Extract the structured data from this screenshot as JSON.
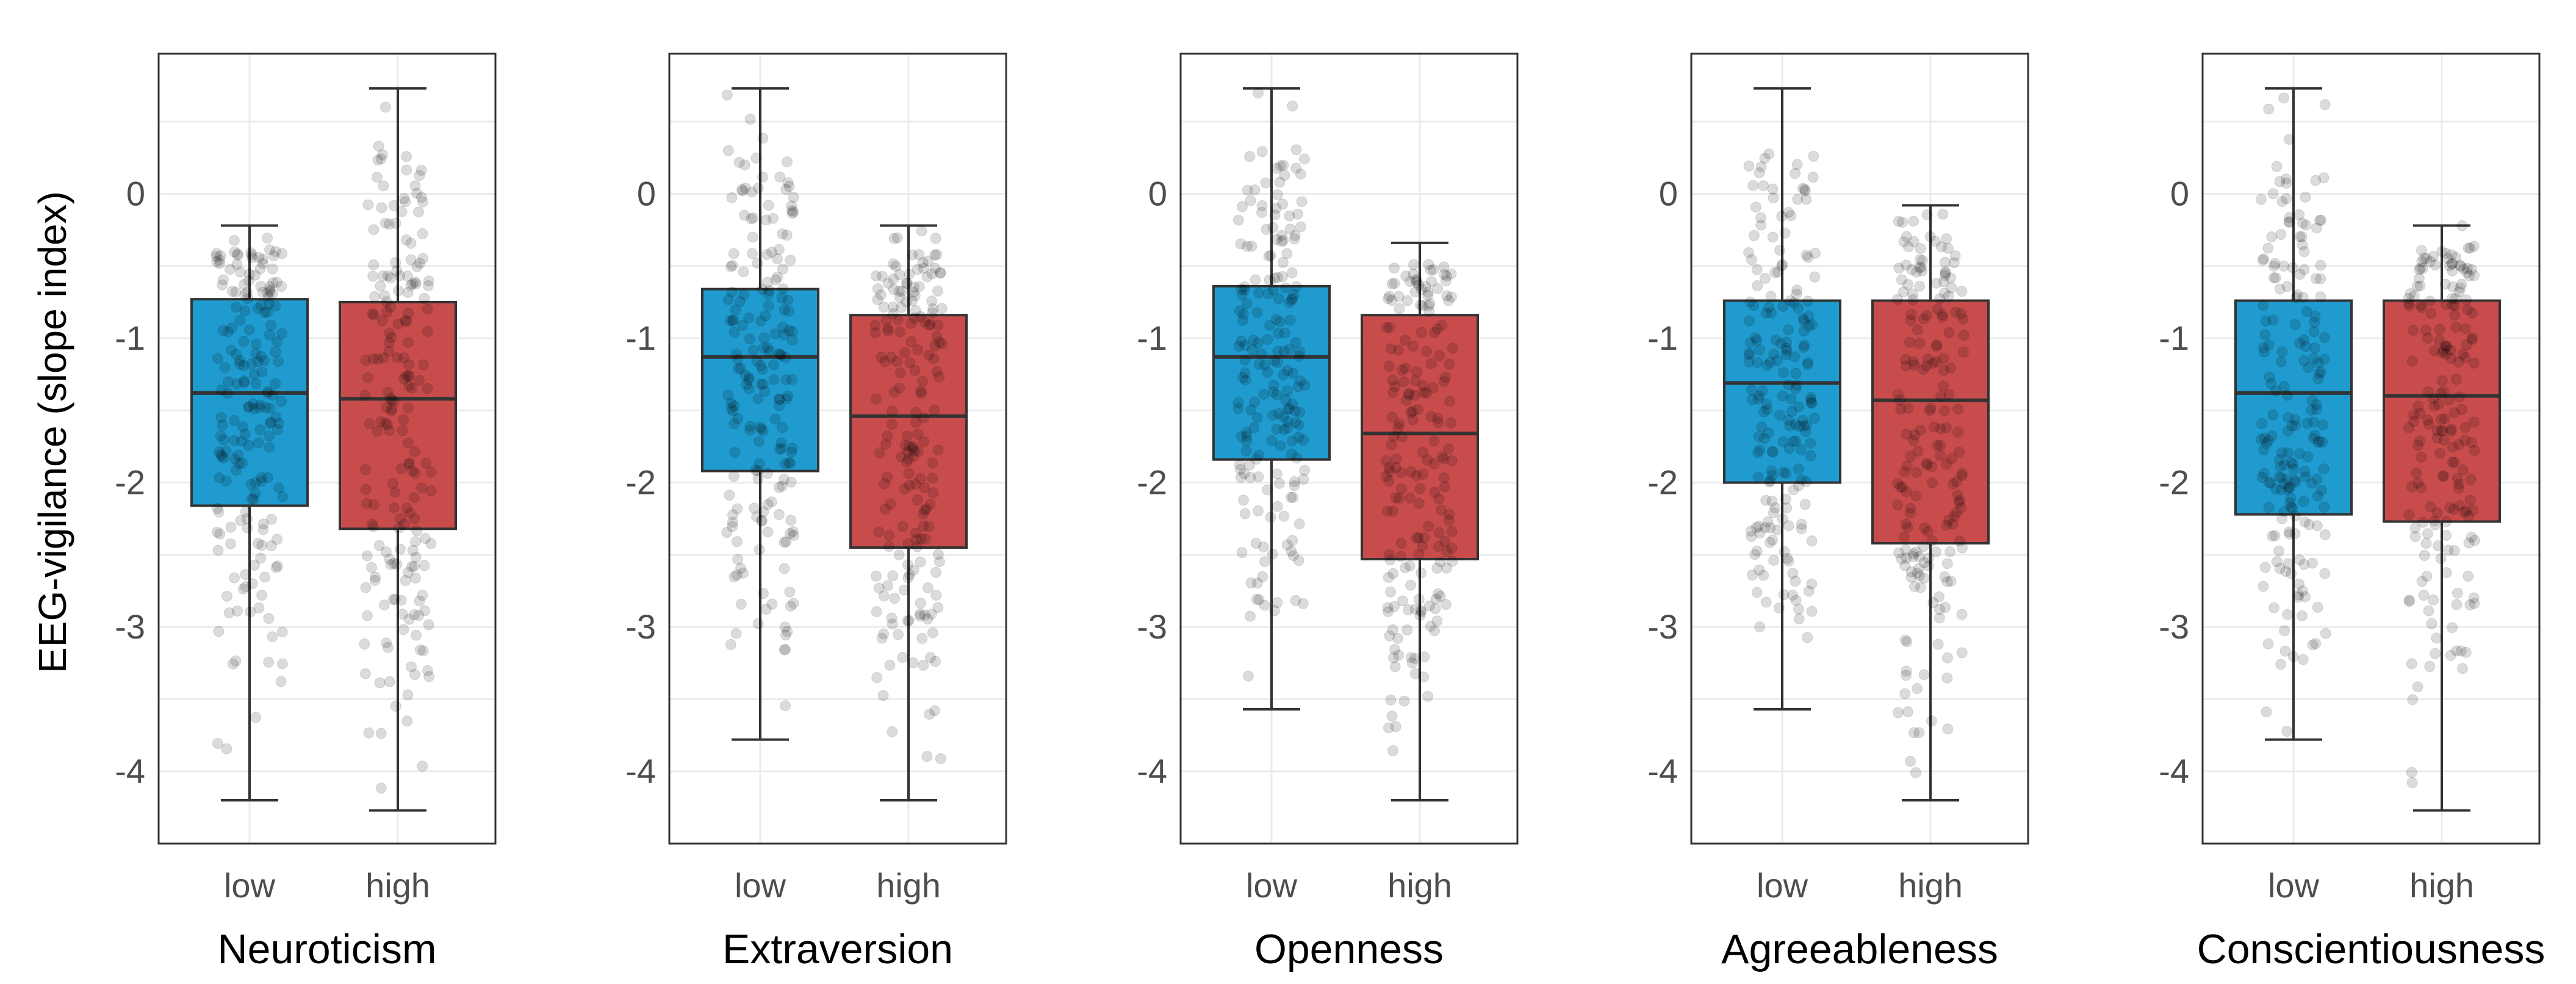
{
  "chart_data": [
    {
      "type": "box",
      "title": "",
      "xlabel": "Neuroticism",
      "ylabel": "EEG-vigilance (slope index)",
      "ylim": [
        -4.5,
        0.97
      ],
      "yticks": [
        "0",
        "-1",
        "-2",
        "-3",
        "-4"
      ],
      "categories": [
        "low",
        "high"
      ],
      "colors": [
        "#1f9bcf",
        "#c84c4c"
      ],
      "boxes": [
        {
          "name": "low",
          "min": -4.2,
          "q1": -2.16,
          "median": -1.38,
          "q3": -0.73,
          "max": -0.22
        },
        {
          "name": "high",
          "min": -4.27,
          "q1": -2.32,
          "median": -1.42,
          "q3": -0.75,
          "max": 0.73
        }
      ]
    },
    {
      "type": "box",
      "title": "",
      "xlabel": "Extraversion",
      "ylabel": "",
      "ylim": [
        -4.5,
        0.97
      ],
      "yticks": [
        "0",
        "-1",
        "-2",
        "-3",
        "-4"
      ],
      "categories": [
        "low",
        "high"
      ],
      "colors": [
        "#1f9bcf",
        "#c84c4c"
      ],
      "boxes": [
        {
          "name": "low",
          "min": -3.78,
          "q1": -1.92,
          "median": -1.13,
          "q3": -0.66,
          "max": 0.73
        },
        {
          "name": "high",
          "min": -4.2,
          "q1": -2.45,
          "median": -1.54,
          "q3": -0.84,
          "max": -0.22
        }
      ]
    },
    {
      "type": "box",
      "title": "",
      "xlabel": "Openness",
      "ylabel": "",
      "ylim": [
        -4.5,
        0.97
      ],
      "yticks": [
        "0",
        "-1",
        "-2",
        "-3",
        "-4"
      ],
      "categories": [
        "low",
        "high"
      ],
      "colors": [
        "#1f9bcf",
        "#c84c4c"
      ],
      "boxes": [
        {
          "name": "low",
          "min": -3.57,
          "q1": -1.84,
          "median": -1.13,
          "q3": -0.64,
          "max": 0.73
        },
        {
          "name": "high",
          "min": -4.2,
          "q1": -2.53,
          "median": -1.66,
          "q3": -0.84,
          "max": -0.34
        }
      ]
    },
    {
      "type": "box",
      "title": "",
      "xlabel": "Agreeableness",
      "ylabel": "",
      "ylim": [
        -4.5,
        0.97
      ],
      "yticks": [
        "0",
        "-1",
        "-2",
        "-3",
        "-4"
      ],
      "categories": [
        "low",
        "high"
      ],
      "colors": [
        "#1f9bcf",
        "#c84c4c"
      ],
      "boxes": [
        {
          "name": "low",
          "min": -3.57,
          "q1": -2.0,
          "median": -1.31,
          "q3": -0.74,
          "max": 0.73
        },
        {
          "name": "high",
          "min": -4.2,
          "q1": -2.42,
          "median": -1.43,
          "q3": -0.74,
          "max": -0.08
        }
      ]
    },
    {
      "type": "box",
      "title": "",
      "xlabel": "Conscientiousness",
      "ylabel": "",
      "ylim": [
        -4.5,
        0.97
      ],
      "yticks": [
        "0",
        "-1",
        "-2",
        "-3",
        "-4"
      ],
      "categories": [
        "low",
        "high"
      ],
      "colors": [
        "#1f9bcf",
        "#c84c4c"
      ],
      "boxes": [
        {
          "name": "low",
          "min": -3.78,
          "q1": -2.22,
          "median": -1.38,
          "q3": -0.74,
          "max": 0.73
        },
        {
          "name": "high",
          "min": -4.27,
          "q1": -2.27,
          "median": -1.4,
          "q3": -0.74,
          "max": -0.22
        }
      ]
    }
  ]
}
